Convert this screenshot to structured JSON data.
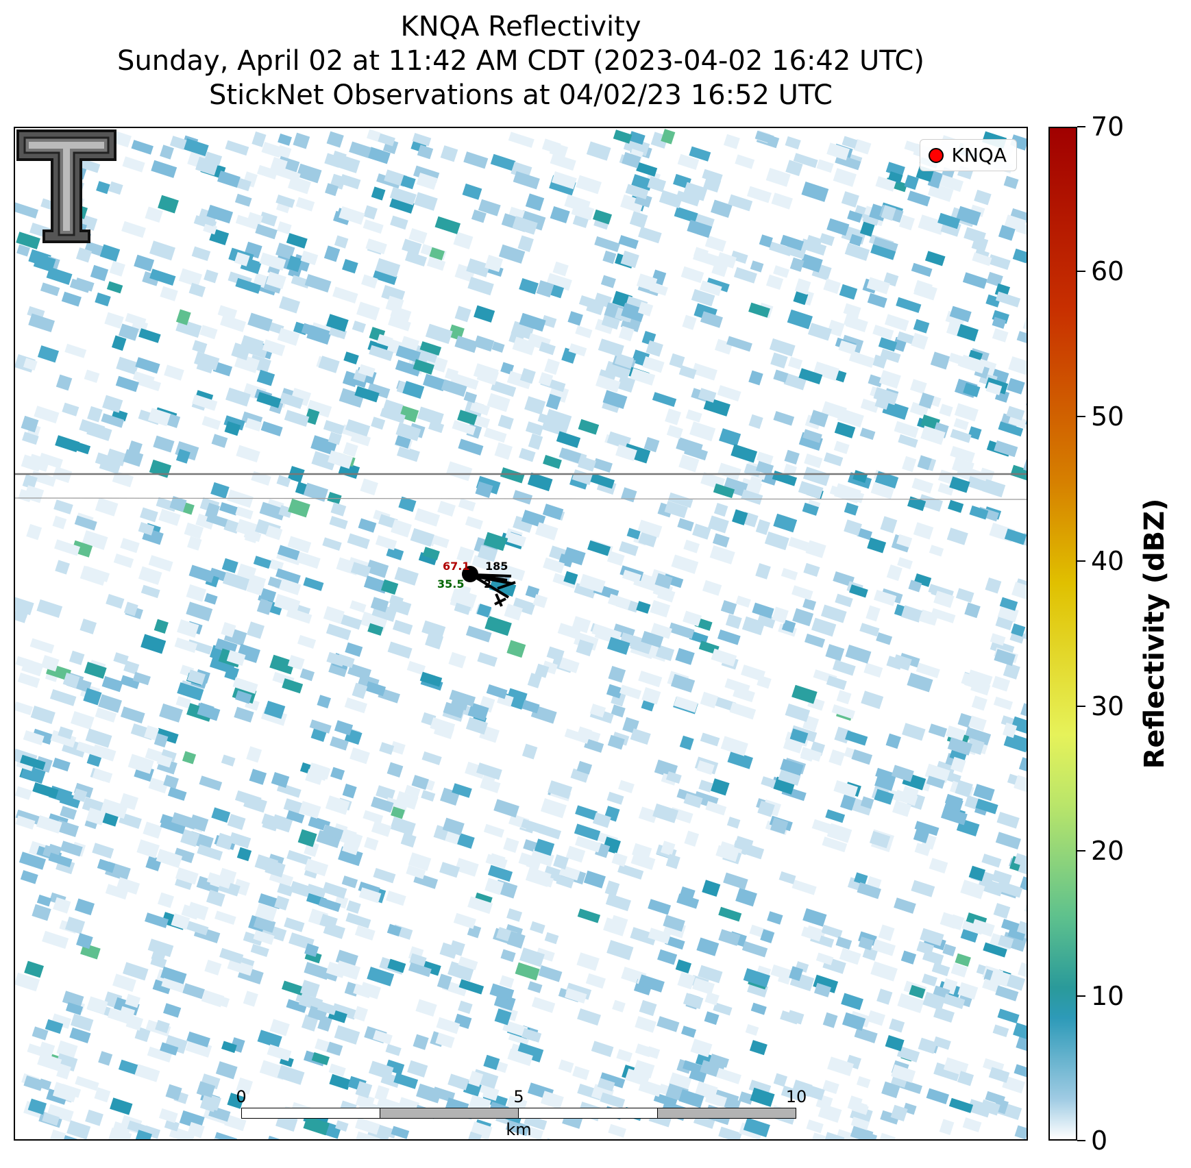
{
  "title": {
    "line1": "KNQA Reflectivity",
    "line2": "Sunday, April 02 at 11:42 AM CDT (2023-04-02 16:42 UTC)",
    "line3": "StickNet Observations at 04/02/23 16:52 UTC"
  },
  "legend": {
    "label": "KNQA",
    "marker_color": "#ff0000"
  },
  "logo": {
    "icon": "texas-tech-double-t-logo"
  },
  "station": {
    "temperature": "67.1",
    "dewpoint": "35.5",
    "pressure": "185",
    "extra": "2",
    "temperature_color": "#b00000",
    "dewpoint_color": "#006400"
  },
  "scalebar": {
    "ticks": [
      "0",
      "5",
      "10"
    ],
    "unit": "km"
  },
  "colorbar": {
    "label": "Reflectivity (dBZ)",
    "min": 0,
    "max": 70,
    "ticks": [
      "0",
      "10",
      "20",
      "30",
      "40",
      "50",
      "60",
      "70"
    ]
  },
  "colors": {
    "light": "#c6e0ef",
    "mid": "#7fbcdb",
    "teal": "#2798b4",
    "green": "#5fc08f"
  }
}
